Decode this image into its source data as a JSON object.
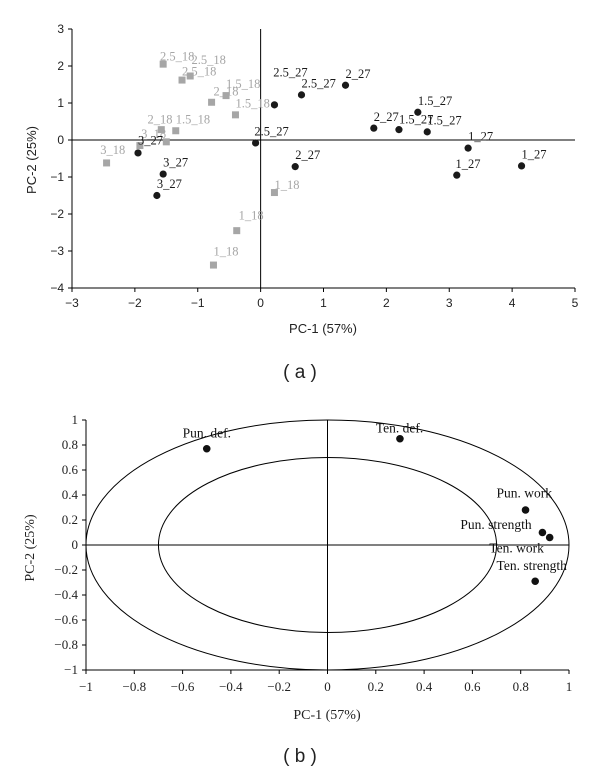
{
  "chart_data": [
    {
      "type": "scatter",
      "caption": "( a )",
      "xlabel": "PC-1 (57%)",
      "ylabel": "PC-2 (25%)",
      "xlim": [
        -3,
        5
      ],
      "ylim": [
        -4,
        3
      ],
      "xticks": [
        "−3",
        "−2",
        "−1",
        "0",
        "1",
        "2",
        "3",
        "4",
        "5"
      ],
      "yticks": [
        "3",
        "2",
        "1",
        "0",
        "−1",
        "−2",
        "−3",
        "−4"
      ],
      "colors": {
        "series_18": "#a6a6a6",
        "series_27": "#1a1a1a",
        "axis": "#000000"
      },
      "series": [
        {
          "name": "_18",
          "marker": "square",
          "points": [
            {
              "x": -1.55,
              "y": 2.05,
              "label": "2.5_18"
            },
            {
              "x": -1.25,
              "y": 1.62,
              "label": "2.5_18"
            },
            {
              "x": -1.12,
              "y": 1.73,
              "label": "2.5_18"
            },
            {
              "x": -0.78,
              "y": 1.02,
              "label": "2_18"
            },
            {
              "x": -0.55,
              "y": 1.2,
              "label": "1.5_18"
            },
            {
              "x": -0.4,
              "y": 0.68,
              "label": "1.5_18"
            },
            {
              "x": -1.58,
              "y": 0.28,
              "label": "2_18"
            },
            {
              "x": -1.35,
              "y": 0.25,
              "label": "1.5_18"
            },
            {
              "x": -1.92,
              "y": -0.15,
              "label": "3_18"
            },
            {
              "x": -1.5,
              "y": -0.05,
              "label": "3_18"
            },
            {
              "x": -2.45,
              "y": -0.62,
              "label": "3_18"
            },
            {
              "x": 0.22,
              "y": -1.42,
              "label": "1_18"
            },
            {
              "x": -0.38,
              "y": -2.45,
              "label": "1_18"
            },
            {
              "x": -0.75,
              "y": -3.38,
              "label": "1_18"
            }
          ]
        },
        {
          "name": "_27",
          "marker": "circle",
          "points": [
            {
              "x": 0.65,
              "y": 1.22,
              "label": "2.5_27"
            },
            {
              "x": 0.22,
              "y": 0.95,
              "label": "2.5_27"
            },
            {
              "x": 1.35,
              "y": 1.48,
              "label": "2_27"
            },
            {
              "x": -0.08,
              "y": -0.08,
              "label": "2.5_27"
            },
            {
              "x": 1.8,
              "y": 0.32,
              "label": "2_27"
            },
            {
              "x": 2.2,
              "y": 0.28,
              "label": "1.5_27"
            },
            {
              "x": 2.5,
              "y": 0.75,
              "label": "1.5_27"
            },
            {
              "x": 2.65,
              "y": 0.22,
              "label": "1.5_27"
            },
            {
              "x": 3.3,
              "y": -0.22,
              "label": "1_27"
            },
            {
              "x": 4.15,
              "y": -0.7,
              "label": "1_27"
            },
            {
              "x": 3.12,
              "y": -0.95,
              "label": "1_27"
            },
            {
              "x": 0.55,
              "y": -0.72,
              "label": "2_27"
            },
            {
              "x": -1.95,
              "y": -0.35,
              "label": "3_27"
            },
            {
              "x": -1.55,
              "y": -0.92,
              "label": "3_27"
            },
            {
              "x": -1.65,
              "y": -1.5,
              "label": "3_27"
            }
          ]
        }
      ],
      "labels": [
        {
          "text": "2.5_18",
          "x": -1.6,
          "y": 2.15,
          "series": "_18"
        },
        {
          "text": "2.5_18",
          "x": -1.1,
          "y": 2.05,
          "series": "_18"
        },
        {
          "text": "2.5_18",
          "x": -1.25,
          "y": 1.75,
          "series": "_18"
        },
        {
          "text": "1.5_18",
          "x": -0.55,
          "y": 1.4,
          "series": "_18"
        },
        {
          "text": "2_18",
          "x": -0.75,
          "y": 1.2,
          "series": "_18"
        },
        {
          "text": "1.5_18",
          "x": -0.4,
          "y": 0.88,
          "series": "_18"
        },
        {
          "text": "2_18",
          "x": -1.8,
          "y": 0.45,
          "series": "_18"
        },
        {
          "text": "1.5_18",
          "x": -1.35,
          "y": 0.45,
          "series": "_18"
        },
        {
          "text": "3_18",
          "x": -1.9,
          "y": 0.05,
          "series": "_18"
        },
        {
          "text": "3_18",
          "x": -2.55,
          "y": -0.38,
          "series": "_18"
        },
        {
          "text": "1_18",
          "x": 0.22,
          "y": -1.32,
          "series": "_18"
        },
        {
          "text": "1_18",
          "x": -0.35,
          "y": -2.15,
          "series": "_18"
        },
        {
          "text": "1_18",
          "x": -0.75,
          "y": -3.12,
          "series": "_18"
        },
        {
          "text": "2.5_27",
          "x": 0.2,
          "y": 1.72,
          "series": "_27"
        },
        {
          "text": "2_27",
          "x": 1.35,
          "y": 1.68,
          "series": "_27"
        },
        {
          "text": "2.5_27",
          "x": 0.65,
          "y": 1.42,
          "series": "_27"
        },
        {
          "text": "2.5_27",
          "x": -0.1,
          "y": 0.12,
          "series": "_27"
        },
        {
          "text": "1.5_27",
          "x": 2.5,
          "y": 0.95,
          "series": "_27"
        },
        {
          "text": "2_27",
          "x": 1.8,
          "y": 0.52,
          "series": "_27"
        },
        {
          "text": "1.5_27",
          "x": 2.2,
          "y": 0.45,
          "series": "_27"
        },
        {
          "text": "1.5_27",
          "x": 2.65,
          "y": 0.42,
          "series": "_27"
        },
        {
          "text": "1_27",
          "x": 3.3,
          "y": -0.02,
          "series": "_27"
        },
        {
          "text": "1_27",
          "x": 4.15,
          "y": -0.5,
          "series": "_27"
        },
        {
          "text": "1_27",
          "x": 3.1,
          "y": -0.75,
          "series": "_27"
        },
        {
          "text": "2_27",
          "x": 0.55,
          "y": -0.52,
          "series": "_27"
        },
        {
          "text": "3_27",
          "x": -1.95,
          "y": -0.12,
          "series": "_27"
        },
        {
          "text": "3_27",
          "x": -1.55,
          "y": -0.72,
          "series": "_27"
        },
        {
          "text": "3_27",
          "x": -1.65,
          "y": -1.3,
          "series": "_27"
        }
      ]
    },
    {
      "type": "scatter",
      "caption": "( b )",
      "xlabel": "PC-1 (57%)",
      "ylabel": "PC-2 (25%)",
      "xlim": [
        -1,
        1
      ],
      "ylim": [
        -1,
        1
      ],
      "xticks": [
        "−1",
        "−0.8",
        "−0.6",
        "−0.4",
        "−0.2",
        "0",
        "0.2",
        "0.4",
        "0.6",
        "0.8",
        "1"
      ],
      "yticks": [
        "1",
        "0.8",
        "0.6",
        "0.4",
        "0.2",
        "0",
        "−0.2",
        "−0.4",
        "−0.6",
        "−0.8",
        "−1"
      ],
      "circles": [
        1.0,
        0.7
      ],
      "colors": {
        "point": "#111111",
        "axis": "#000000"
      },
      "points": [
        {
          "x": -0.5,
          "y": 0.77,
          "label": "Pun. def."
        },
        {
          "x": 0.3,
          "y": 0.85,
          "label": "Ten. def."
        },
        {
          "x": 0.82,
          "y": 0.28,
          "label": "Pun. work"
        },
        {
          "x": 0.89,
          "y": 0.1,
          "label": "Pun. strength"
        },
        {
          "x": 0.92,
          "y": 0.06,
          "label": "Ten. work"
        },
        {
          "x": 0.86,
          "y": -0.29,
          "label": "Ten. strength"
        }
      ],
      "labels": [
        {
          "text": "Pun. def.",
          "x": -0.6,
          "y": 0.86
        },
        {
          "text": "Ten. def.",
          "x": 0.2,
          "y": 0.9
        },
        {
          "text": "Pun. work",
          "x": 0.7,
          "y": 0.38
        },
        {
          "text": "Pun. strength",
          "x": 0.55,
          "y": 0.13
        },
        {
          "text": "Ten. work",
          "x": 0.67,
          "y": -0.06
        },
        {
          "text": "Ten. strength",
          "x": 0.7,
          "y": -0.2
        }
      ]
    }
  ]
}
